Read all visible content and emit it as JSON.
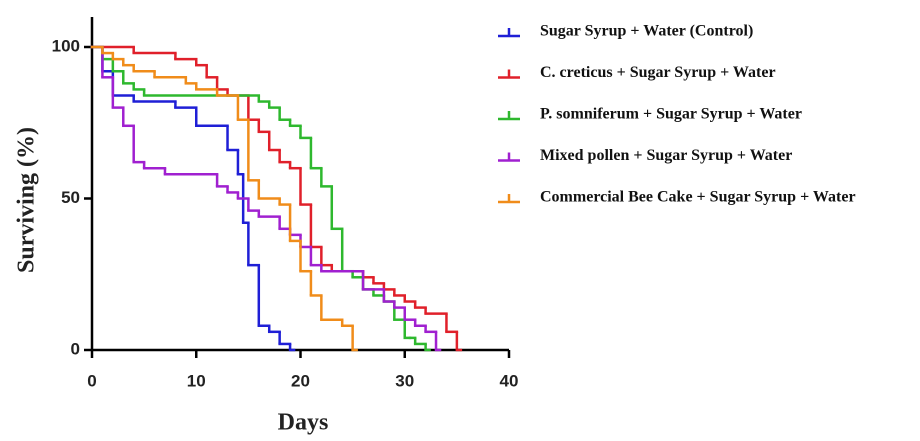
{
  "chart_data": {
    "type": "step",
    "x_label": "Days",
    "y_label": "Surviving (%)",
    "xlim": [
      0,
      40
    ],
    "xticks": [
      0,
      10,
      20,
      30,
      40
    ],
    "ylim": [
      0,
      100
    ],
    "yticks": [
      0,
      50,
      100
    ],
    "series": [
      {
        "name": "Sugar Syrup + Water (Control)",
        "color": "#1f1fd6",
        "x": [
          0,
          1,
          2,
          4,
          8,
          10,
          13,
          14,
          14.5,
          15,
          16,
          17,
          18,
          19
        ],
        "values": [
          100,
          92,
          84,
          82,
          80,
          74,
          66,
          58,
          42,
          28,
          8,
          6,
          2,
          0
        ]
      },
      {
        "name": "C. creticus + Sugar Syrup + Water",
        "color": "#e0202a",
        "x": [
          0,
          4,
          8,
          10,
          11,
          12,
          13,
          15,
          16,
          17,
          18,
          19,
          20,
          21,
          22,
          23,
          26,
          27,
          28,
          29,
          30,
          31,
          32,
          34,
          35
        ],
        "values": [
          100,
          98,
          96,
          94,
          90,
          86,
          84,
          76,
          72,
          66,
          62,
          60,
          48,
          34,
          28,
          26,
          24,
          22,
          20,
          18,
          16,
          14,
          12,
          6,
          0
        ]
      },
      {
        "name": "P. somniferum + Sugar Syrup + Water",
        "color": "#2eb82e",
        "x": [
          0,
          1,
          2,
          3,
          4,
          5,
          16,
          17,
          18,
          19,
          20,
          21,
          22,
          23,
          24,
          25,
          26,
          27,
          28,
          29,
          30,
          30.5,
          31,
          32
        ],
        "values": [
          100,
          96,
          92,
          88,
          86,
          84,
          82,
          80,
          76,
          74,
          70,
          60,
          54,
          40,
          26,
          24,
          20,
          18,
          16,
          10,
          4,
          4,
          2,
          0
        ]
      },
      {
        "name": "Mixed pollen + Sugar Syrup + Water",
        "color": "#a020d0",
        "x": [
          0,
          1,
          2,
          3,
          4,
          5,
          7,
          12,
          13,
          14,
          15,
          16,
          18,
          19,
          20,
          21,
          22,
          26,
          28,
          29,
          30,
          31,
          32,
          33
        ],
        "values": [
          100,
          90,
          80,
          74,
          62,
          60,
          58,
          54,
          52,
          50,
          46,
          44,
          40,
          38,
          34,
          28,
          26,
          20,
          16,
          14,
          10,
          8,
          6,
          0
        ]
      },
      {
        "name": "Commercial Bee Cake + Sugar Syrup + Water",
        "color": "#f08c1a",
        "x": [
          0,
          1,
          2,
          3,
          4,
          6,
          9,
          10,
          12,
          14,
          15,
          16,
          18,
          19,
          20,
          21,
          22,
          24,
          25
        ],
        "values": [
          100,
          98,
          96,
          94,
          92,
          90,
          88,
          86,
          84,
          76,
          56,
          50,
          48,
          36,
          26,
          18,
          10,
          8,
          0
        ]
      }
    ]
  }
}
